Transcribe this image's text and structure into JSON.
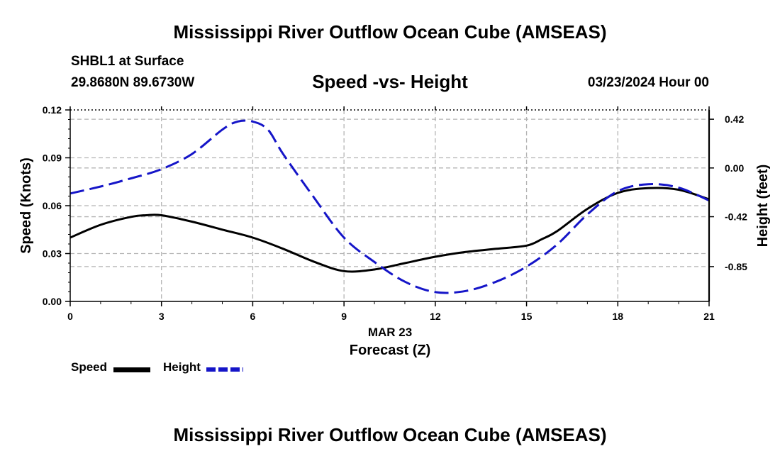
{
  "header": {
    "title_top": "Mississippi River Outflow Ocean Cube (AMSEAS)",
    "station": "SHBL1 at Surface",
    "coords": "29.8680N  89.6730W",
    "subtitle": "Speed -vs- Height",
    "datetime": "03/23/2024 Hour 00",
    "title_bottom": "Mississippi River Outflow Ocean Cube (AMSEAS)"
  },
  "legend": {
    "speed_label": "Speed",
    "height_label": "Height"
  },
  "colors": {
    "speed": "#000000",
    "height": "#1515c8",
    "grid": "#b4b4b4"
  },
  "chart_data": {
    "type": "line",
    "title": "Speed -vs- Height",
    "xlabel": "Forecast (Z)",
    "xlabel_date": "MAR 23",
    "ylabel_left": "Speed (Knots)",
    "ylabel_right": "Height (feet)",
    "x_ticks": [
      0,
      3,
      6,
      9,
      12,
      15,
      18,
      21
    ],
    "xlim": [
      0,
      21
    ],
    "ylim_left": [
      0,
      0.12
    ],
    "y_ticks_left": [
      "0.00",
      "0.03",
      "0.06",
      "0.09",
      "0.12"
    ],
    "y_ticks_left_values": [
      0,
      0.03,
      0.06,
      0.09,
      0.12
    ],
    "ylim_right": [
      -1.15,
      0.5
    ],
    "y_ticks_right": [
      "-0.85",
      "-0.42",
      "0.00",
      "0.42"
    ],
    "y_ticks_right_values": [
      -0.85,
      -0.42,
      0.0,
      0.42
    ],
    "grid": true,
    "legend_position": "bottom-left",
    "series": [
      {
        "name": "Speed",
        "axis": "left",
        "style": "solid",
        "x": [
          0,
          1,
          2,
          2.5,
          3,
          4,
          5,
          6,
          7,
          8,
          9,
          10,
          11,
          12,
          13,
          14,
          15,
          15.5,
          16,
          17,
          18,
          19,
          20,
          21
        ],
        "values": [
          0.04,
          0.048,
          0.053,
          0.054,
          0.054,
          0.05,
          0.045,
          0.04,
          0.033,
          0.025,
          0.019,
          0.02,
          0.024,
          0.028,
          0.031,
          0.033,
          0.035,
          0.039,
          0.044,
          0.058,
          0.068,
          0.071,
          0.07,
          0.064
        ]
      },
      {
        "name": "Height",
        "axis": "right",
        "style": "dashed",
        "x": [
          0,
          1,
          2,
          3,
          4,
          5,
          5.5,
          6,
          6.5,
          7,
          8,
          9,
          10,
          11,
          12,
          13,
          14,
          15,
          16,
          17,
          18,
          19,
          20,
          21
        ],
        "values": [
          -0.22,
          -0.16,
          -0.09,
          -0.01,
          0.12,
          0.33,
          0.4,
          0.4,
          0.33,
          0.12,
          -0.25,
          -0.6,
          -0.81,
          -0.98,
          -1.07,
          -1.06,
          -0.98,
          -0.85,
          -0.66,
          -0.4,
          -0.2,
          -0.14,
          -0.17,
          -0.28
        ]
      }
    ]
  }
}
